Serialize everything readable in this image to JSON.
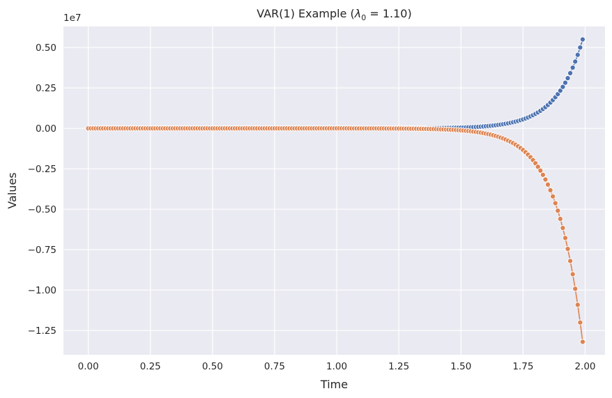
{
  "chart_data": {
    "type": "line",
    "title_prefix": "VAR(1) Example (",
    "title_lambda": "λ",
    "title_subscript": "0",
    "title_suffix": " = 1.10)",
    "xlabel": "Time",
    "ylabel": "Values",
    "y_offset_label": "1e7",
    "xlim": [
      -0.1,
      2.08
    ],
    "ylim": [
      -14000000,
      6300000
    ],
    "x_ticks": [
      0.0,
      0.25,
      0.5,
      0.75,
      1.0,
      1.25,
      1.5,
      1.75,
      2.0
    ],
    "x_tick_labels": [
      "0.00",
      "0.25",
      "0.50",
      "0.75",
      "1.00",
      "1.25",
      "1.50",
      "1.75",
      "2.00"
    ],
    "y_ticks": [
      5000000,
      2500000,
      0,
      -2500000,
      -5000000,
      -7500000,
      -10000000,
      -12500000
    ],
    "y_tick_labels": [
      "0.50",
      "0.25",
      "0.00",
      "−0.25",
      "−0.50",
      "−0.75",
      "−1.00",
      "−1.25"
    ],
    "grid": true,
    "legend": "none",
    "x_start": 0.0,
    "x_step": 0.01,
    "n_points": 200,
    "series": [
      {
        "color": "#4c72b0",
        "growth_per_step": 1.1,
        "value_at_x_1_99": 5500000
      },
      {
        "color": "#dd8452",
        "growth_per_step": 1.1,
        "value_at_x_1_99": -13200000
      }
    ]
  },
  "colors": {
    "plot_background": "#eaeaf2",
    "grid": "#ffffff",
    "text": "#262626"
  }
}
